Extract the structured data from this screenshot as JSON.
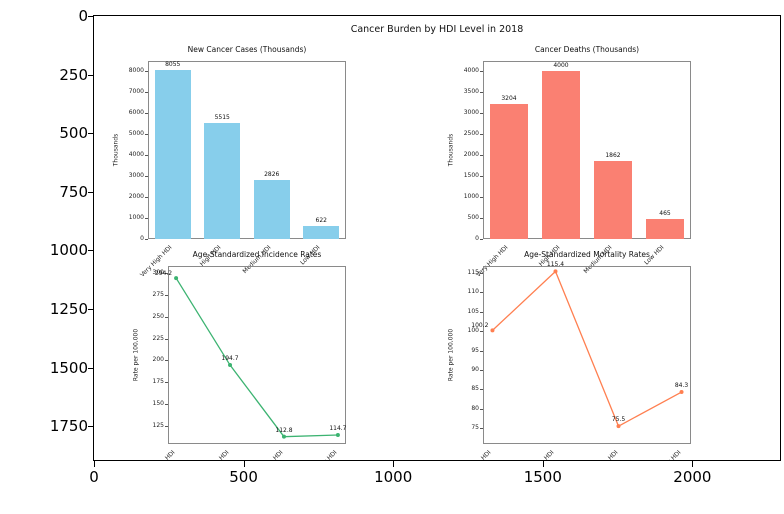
{
  "figure": {
    "title": "Cancer Burden by HDI Level in 2018"
  },
  "outer_axes": {
    "y_tick_labels": [
      "0",
      "250",
      "500",
      "750",
      "1000",
      "1250",
      "1500",
      "1750"
    ],
    "x_tick_labels": [
      "0",
      "500",
      "1000",
      "1500",
      "2000"
    ]
  },
  "chart_data": [
    {
      "id": "new-cancer-cases",
      "type": "bar",
      "title": "New Cancer Cases (Thousands)",
      "ylabel": "Thousands",
      "categories": [
        "Very High HDI",
        "High HDI",
        "Medium HDI",
        "Low HDI"
      ],
      "values": [
        8055,
        5515,
        2826,
        622
      ],
      "value_labels": [
        "8055",
        "5515",
        "2826",
        "622"
      ],
      "yticks": [
        "0",
        "1000",
        "2000",
        "3000",
        "4000",
        "5000",
        "6000",
        "7000",
        "8000"
      ],
      "ylim": [
        0,
        8475
      ],
      "color": "#87CEEB",
      "legend": "none",
      "grid": false
    },
    {
      "id": "cancer-deaths",
      "type": "bar",
      "title": "Cancer Deaths (Thousands)",
      "ylabel": "Thousands",
      "categories": [
        "Very High HDI",
        "High HDI",
        "Medium HDI",
        "Low HDI"
      ],
      "values": [
        3204,
        4000,
        1862,
        465
      ],
      "value_labels": [
        "3204",
        "4000",
        "1862",
        "465"
      ],
      "yticks": [
        "0",
        "500",
        "1000",
        "1500",
        "2000",
        "2500",
        "3000",
        "3500",
        "4000"
      ],
      "ylim": [
        0,
        4240
      ],
      "color": "#FA8072",
      "legend": "none",
      "grid": false
    },
    {
      "id": "incidence-rates",
      "type": "line",
      "title": "Age-Standardized Incidence Rates",
      "ylabel": "Rate per 100,000",
      "categories": [
        "Very High HDI",
        "High HDI",
        "Medium HDI",
        "Low HDI"
      ],
      "values": [
        294.2,
        194.7,
        112.8,
        114.7
      ],
      "value_labels": [
        "294.2",
        "194.7",
        "112.8",
        "114.7"
      ],
      "yticks": [
        "300",
        "275",
        "250",
        "225",
        "200",
        "175",
        "150",
        "125"
      ],
      "ylim": [
        104.4,
        308
      ],
      "color": "#3CB371",
      "legend": "none",
      "grid": false
    },
    {
      "id": "mortality-rates",
      "type": "line",
      "title": "Age-Standardized Mortality Rates",
      "ylabel": "Rate per 100,000",
      "categories": [
        "Very High HDI",
        "High HDI",
        "Medium HDI",
        "Low HDI"
      ],
      "values": [
        100.2,
        115.4,
        75.5,
        84.3
      ],
      "value_labels": [
        "100.2",
        "115.4",
        "75.5",
        "84.3"
      ],
      "yticks": [
        "115",
        "110",
        "105",
        "100",
        "95",
        "90",
        "85",
        "80",
        "75"
      ],
      "ylim": [
        70.9,
        116.8
      ],
      "color": "#FF7F50",
      "legend": "none",
      "grid": false
    }
  ]
}
